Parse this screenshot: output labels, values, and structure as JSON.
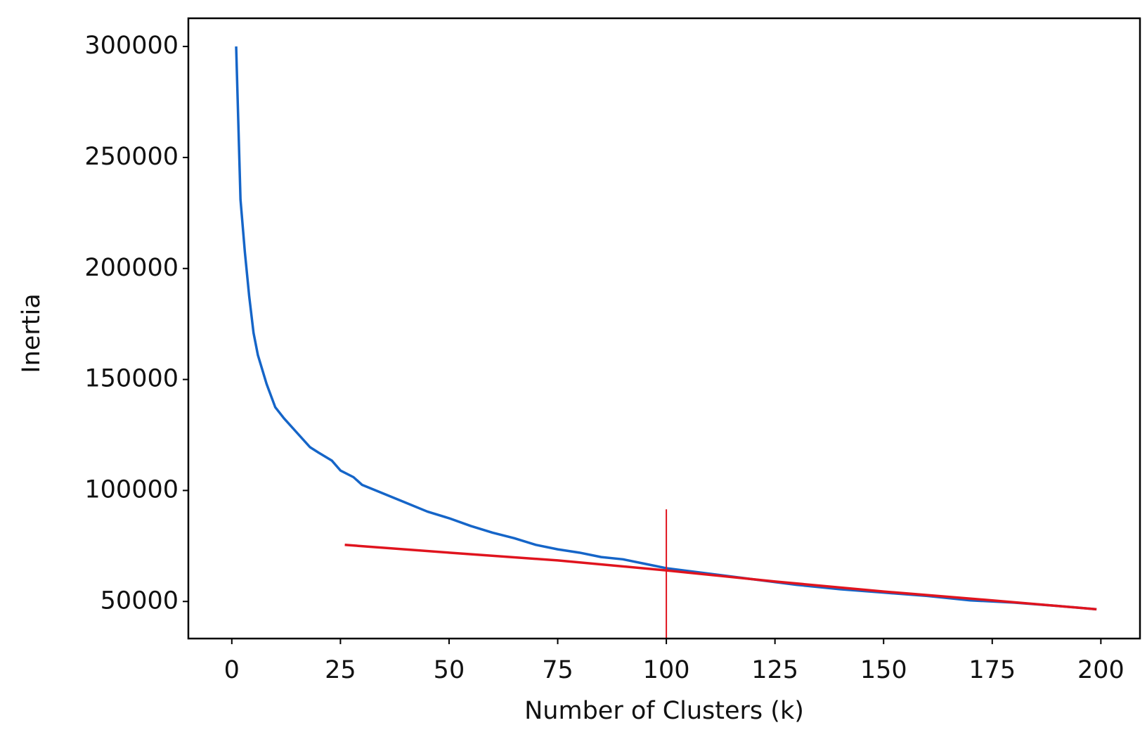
{
  "chart_data": {
    "type": "line",
    "x_label": "Number of Clusters (k)",
    "y_label": "Inertia",
    "xlim": [
      -10,
      209
    ],
    "ylim": [
      33300,
      312700
    ],
    "xticks": [
      0,
      25,
      50,
      75,
      100,
      125,
      150,
      175,
      200
    ],
    "yticks": [
      50000,
      100000,
      150000,
      200000,
      250000,
      300000
    ],
    "series": [
      {
        "color": "#1565c8",
        "x": [
          1,
          2,
          3,
          4,
          5,
          6,
          8,
          10,
          12,
          15,
          18,
          20,
          23,
          25,
          28,
          30,
          35,
          40,
          45,
          50,
          55,
          60,
          65,
          70,
          75,
          80,
          85,
          90,
          95,
          100,
          110,
          120,
          130,
          140,
          150,
          160,
          170,
          180,
          190,
          199
        ],
        "values": [
          300000,
          231000,
          207500,
          187500,
          171000,
          161000,
          148000,
          137500,
          132500,
          126000,
          119500,
          117000,
          113500,
          109000,
          106000,
          102500,
          98500,
          94500,
          90500,
          87500,
          84000,
          81000,
          78500,
          75500,
          73500,
          72000,
          70000,
          69000,
          67000,
          65000,
          62500,
          60000,
          57500,
          55500,
          54000,
          52500,
          50500,
          49500,
          48000,
          46500
        ]
      },
      {
        "color": "#e0141e",
        "x": [
          26,
          50,
          75,
          100,
          125,
          150,
          175,
          199
        ],
        "values": [
          75500,
          72000,
          68500,
          64000,
          59000,
          54500,
          50500,
          46500
        ]
      }
    ],
    "vline": {
      "x": 100,
      "ymax": 91500,
      "color": "#e0141e"
    }
  }
}
